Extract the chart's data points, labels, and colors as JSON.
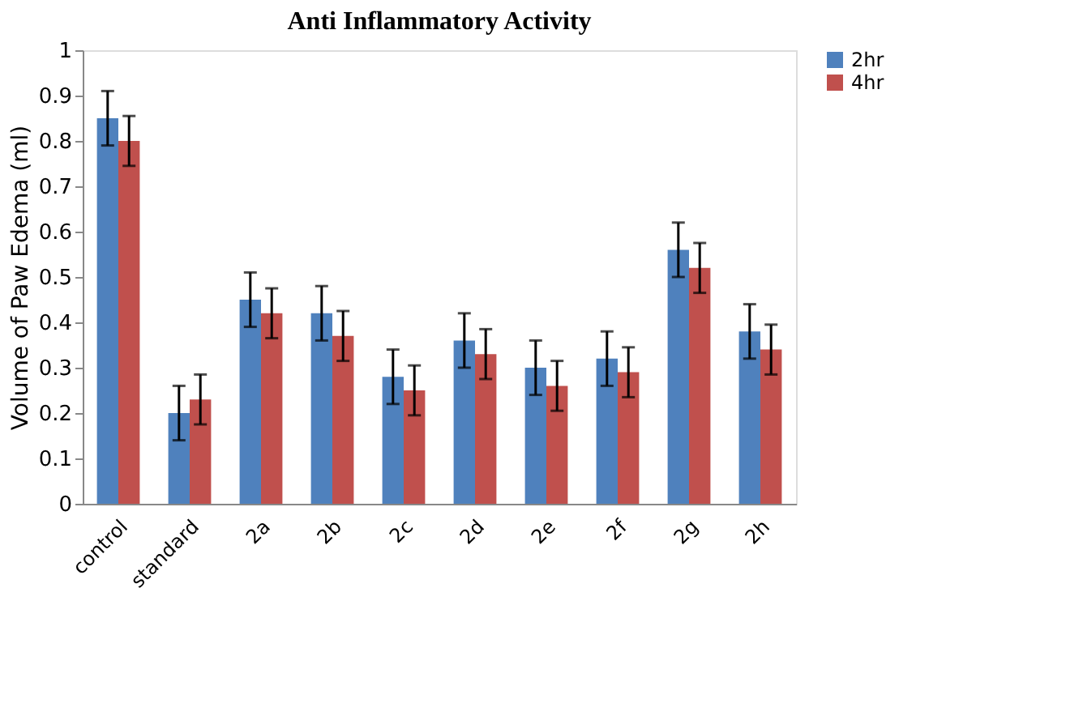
{
  "chart_data": {
    "type": "bar",
    "title": "Anti Inflammatory Activity",
    "ylabel": "Volume of Paw Edema (ml)",
    "categories": [
      "control",
      "standard",
      "2a",
      "2b",
      "2c",
      "2d",
      "2e",
      "2f",
      "2g",
      "2h"
    ],
    "series": [
      {
        "name": "2hr",
        "color": "#4f81bd",
        "values": [
          0.85,
          0.2,
          0.45,
          0.42,
          0.28,
          0.36,
          0.3,
          0.32,
          0.56,
          0.38
        ],
        "errors": [
          0.06,
          0.06,
          0.06,
          0.06,
          0.06,
          0.06,
          0.06,
          0.06,
          0.06,
          0.06
        ]
      },
      {
        "name": "4hr",
        "color": "#c0504d",
        "values": [
          0.8,
          0.23,
          0.42,
          0.37,
          0.25,
          0.33,
          0.26,
          0.29,
          0.52,
          0.34
        ],
        "errors": [
          0.055,
          0.055,
          0.055,
          0.055,
          0.055,
          0.055,
          0.055,
          0.055,
          0.055,
          0.055
        ]
      }
    ],
    "ylim": [
      0,
      1
    ],
    "yticks": [
      0,
      0.1,
      0.2,
      0.3,
      0.4,
      0.5,
      0.6,
      0.7,
      0.8,
      0.9,
      1
    ],
    "grid": false,
    "legend": "right"
  }
}
